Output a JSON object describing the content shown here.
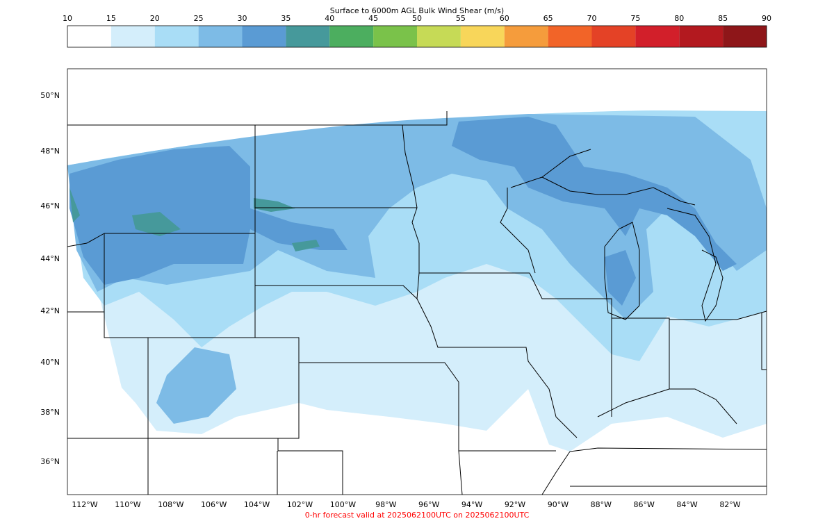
{
  "colorbar": {
    "title": "Surface to 6000m AGL Bulk Wind Shear (m/s)",
    "ticks": [
      10,
      15,
      20,
      25,
      30,
      35,
      40,
      45,
      50,
      55,
      60,
      65,
      70,
      75,
      80,
      85,
      90
    ],
    "colors": [
      "#ffffff",
      "#d4eefb",
      "#a9ddf6",
      "#7dbbe6",
      "#5a9bd4",
      "#46999b",
      "#4cae5f",
      "#7ac24a",
      "#c6da56",
      "#f8d65a",
      "#f59c3c",
      "#f26428",
      "#e44226",
      "#d21f2a",
      "#b3191f",
      "#8e1619"
    ]
  },
  "map": {
    "lat_labels": [
      "50°N",
      "48°N",
      "46°N",
      "44°N",
      "42°N",
      "40°N",
      "38°N",
      "36°N"
    ],
    "lon_labels": [
      "112°W",
      "110°W",
      "108°W",
      "106°W",
      "104°W",
      "102°W",
      "100°W",
      "98°W",
      "96°W",
      "94°W",
      "92°W",
      "90°W",
      "88°W",
      "86°W",
      "84°W",
      "82°W"
    ]
  },
  "footer": "0-hr forecast valid at 2025062100UTC on 2025062100UTC"
}
